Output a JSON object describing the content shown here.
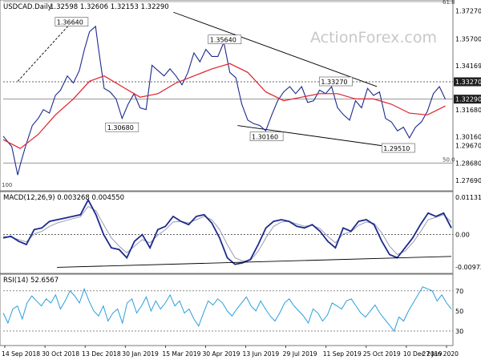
{
  "chart_data": [
    {
      "type": "line",
      "panel": "price",
      "title": "USDCAD.Daily",
      "ohlc_readout": "1.32598 1.32606 1.32153 1.32290",
      "watermark": "ActionForex.com",
      "y_ticks": [
        "1.37270",
        "1.35700",
        "1.34169",
        "1.32290",
        "1.31680",
        "1.30160",
        "1.29670",
        "1.28680",
        "1.27690"
      ],
      "ylim": [
        1.272,
        1.378
      ],
      "current_price_badge": "1.32290",
      "swing_badge": "1.33270",
      "fib_labels": [
        "61.8",
        "50.0",
        "100"
      ],
      "fib_levels": [
        1.378,
        1.2868
      ],
      "horizontal_levels": {
        "resistance": 1.3327,
        "current": 1.3229
      },
      "annotations": [
        {
          "text": "1.36640",
          "x": "2018-12-03",
          "y": 1.3664
        },
        {
          "text": "1.30680",
          "x": "2019-01-31",
          "y": 1.3068
        },
        {
          "text": "1.35640",
          "x": "2019-05-31",
          "y": 1.3564
        },
        {
          "text": "1.30160",
          "x": "2019-07-19",
          "y": 1.3016
        },
        {
          "text": "1.33270",
          "x": "2019-10-08",
          "y": 1.3327
        },
        {
          "text": "1.29510",
          "x": "2019-12-20",
          "y": 1.2951
        }
      ],
      "trendlines": [
        {
          "from": [
            "2018-10-01",
            1.333
          ],
          "to": [
            "2018-12-03",
            1.3664
          ]
        },
        {
          "from": [
            "2019-04-01",
            1.372
          ],
          "to": [
            "2019-11-25",
            1.33
          ]
        },
        {
          "from": [
            "2019-06-15",
            1.308
          ],
          "to": [
            "2020-01-01",
            1.2945
          ]
        }
      ],
      "x_ticks": [
        "14 Sep 2018",
        "30 Oct 2018",
        "13 Dec 2018",
        "30 Jan 2019",
        "15 Mar 2019",
        "30 Apr 2019",
        "13 Jun 2019",
        "29 Jul 2019",
        "11 Sep 2019",
        "25 Oct 2019",
        "10 Dec 2019",
        "27 Jan 2020"
      ],
      "series": [
        {
          "name": "",
          "color": "#1c2a8c",
          "points": [
            [
              "2018-09-14",
              1.302
            ],
            [
              "2018-09-24",
              1.296
            ],
            [
              "2018-10-01",
              1.28
            ],
            [
              "2018-10-04",
              1.286
            ],
            [
              "2018-10-10",
              1.296
            ],
            [
              "2018-10-18",
              1.308
            ],
            [
              "2018-10-25",
              1.312
            ],
            [
              "2018-10-31",
              1.317
            ],
            [
              "2018-11-07",
              1.315
            ],
            [
              "2018-11-14",
              1.325
            ],
            [
              "2018-11-20",
              1.328
            ],
            [
              "2018-11-28",
              1.336
            ],
            [
              "2018-12-05",
              1.332
            ],
            [
              "2018-12-12",
              1.339
            ],
            [
              "2018-12-18",
              1.351
            ],
            [
              "2018-12-24",
              1.361
            ],
            [
              "2018-12-31",
              1.364
            ],
            [
              "2019-01-03",
              1.353
            ],
            [
              "2019-01-10",
              1.329
            ],
            [
              "2019-01-17",
              1.327
            ],
            [
              "2019-01-24",
              1.323
            ],
            [
              "2019-01-31",
              1.312
            ],
            [
              "2019-02-07",
              1.32
            ],
            [
              "2019-02-14",
              1.326
            ],
            [
              "2019-02-21",
              1.318
            ],
            [
              "2019-02-28",
              1.317
            ],
            [
              "2019-03-07",
              1.342
            ],
            [
              "2019-03-14",
              1.339
            ],
            [
              "2019-03-21",
              1.336
            ],
            [
              "2019-03-28",
              1.34
            ],
            [
              "2019-04-04",
              1.336
            ],
            [
              "2019-04-11",
              1.331
            ],
            [
              "2019-04-18",
              1.338
            ],
            [
              "2019-04-25",
              1.349
            ],
            [
              "2019-05-02",
              1.344
            ],
            [
              "2019-05-09",
              1.351
            ],
            [
              "2019-05-16",
              1.347
            ],
            [
              "2019-05-23",
              1.347
            ],
            [
              "2019-05-30",
              1.355
            ],
            [
              "2019-06-06",
              1.338
            ],
            [
              "2019-06-13",
              1.335
            ],
            [
              "2019-06-20",
              1.32
            ],
            [
              "2019-06-27",
              1.311
            ],
            [
              "2019-07-04",
              1.309
            ],
            [
              "2019-07-11",
              1.308
            ],
            [
              "2019-07-18",
              1.305
            ],
            [
              "2019-07-25",
              1.314
            ],
            [
              "2019-08-01",
              1.322
            ],
            [
              "2019-08-08",
              1.327
            ],
            [
              "2019-08-15",
              1.33
            ],
            [
              "2019-08-22",
              1.326
            ],
            [
              "2019-08-29",
              1.33
            ],
            [
              "2019-09-05",
              1.321
            ],
            [
              "2019-09-12",
              1.322
            ],
            [
              "2019-09-19",
              1.328
            ],
            [
              "2019-09-26",
              1.326
            ],
            [
              "2019-10-03",
              1.33
            ],
            [
              "2019-10-10",
              1.318
            ],
            [
              "2019-10-17",
              1.314
            ],
            [
              "2019-10-24",
              1.311
            ],
            [
              "2019-10-31",
              1.322
            ],
            [
              "2019-11-07",
              1.318
            ],
            [
              "2019-11-14",
              1.329
            ],
            [
              "2019-11-21",
              1.325
            ],
            [
              "2019-11-28",
              1.327
            ],
            [
              "2019-12-05",
              1.312
            ],
            [
              "2019-12-12",
              1.31
            ],
            [
              "2019-12-19",
              1.305
            ],
            [
              "2019-12-26",
              1.307
            ],
            [
              "2020-01-02",
              1.301
            ],
            [
              "2020-01-09",
              1.307
            ],
            [
              "2020-01-16",
              1.31
            ],
            [
              "2020-01-23",
              1.316
            ],
            [
              "2020-01-30",
              1.326
            ],
            [
              "2020-02-06",
              1.33
            ],
            [
              "2020-02-13",
              1.3229
            ]
          ]
        },
        {
          "name": "",
          "color": "#e0212a",
          "points": [
            [
              "2018-09-14",
              1.3
            ],
            [
              "2018-10-04",
              1.295
            ],
            [
              "2018-10-25",
              1.303
            ],
            [
              "2018-11-14",
              1.314
            ],
            [
              "2018-12-05",
              1.323
            ],
            [
              "2018-12-24",
              1.333
            ],
            [
              "2019-01-10",
              1.336
            ],
            [
              "2019-01-31",
              1.33
            ],
            [
              "2019-02-21",
              1.324
            ],
            [
              "2019-03-14",
              1.326
            ],
            [
              "2019-04-04",
              1.332
            ],
            [
              "2019-04-25",
              1.336
            ],
            [
              "2019-05-16",
              1.34
            ],
            [
              "2019-06-06",
              1.343
            ],
            [
              "2019-06-27",
              1.338
            ],
            [
              "2019-07-18",
              1.327
            ],
            [
              "2019-08-08",
              1.322
            ],
            [
              "2019-08-29",
              1.324
            ],
            [
              "2019-09-19",
              1.326
            ],
            [
              "2019-10-10",
              1.326
            ],
            [
              "2019-10-31",
              1.323
            ],
            [
              "2019-11-21",
              1.323
            ],
            [
              "2019-12-12",
              1.32
            ],
            [
              "2020-01-02",
              1.315
            ],
            [
              "2020-01-23",
              1.314
            ],
            [
              "2020-02-13",
              1.319
            ]
          ]
        }
      ]
    },
    {
      "type": "line",
      "panel": "macd",
      "title": "MACD(12,26,9) 0.003268 0.004550",
      "y_ticks": [
        "0.011313",
        "0.00",
        "-0.009729"
      ],
      "ylim": [
        -0.011,
        0.0125
      ],
      "series": [
        {
          "name": "",
          "color": "#1c2a8c",
          "values": [
            -0.001,
            -0.0005,
            -0.002,
            -0.003,
            0.0015,
            0.002,
            0.004,
            0.0045,
            0.005,
            0.0055,
            0.006,
            0.0105,
            0.006,
            0.0,
            -0.004,
            -0.0045,
            -0.007,
            -0.002,
            0.0,
            -0.004,
            0.0015,
            0.0025,
            0.0055,
            0.004,
            0.003,
            0.0055,
            0.006,
            0.0035,
            -0.001,
            -0.007,
            -0.009,
            -0.0085,
            -0.0075,
            -0.003,
            0.002,
            0.004,
            0.0045,
            0.004,
            0.0025,
            0.002,
            0.003,
            0.001,
            -0.002,
            -0.004,
            0.002,
            0.001,
            0.004,
            0.0045,
            0.003,
            -0.002,
            -0.006,
            -0.007,
            -0.004,
            -0.001,
            0.003,
            0.0065,
            0.0055,
            0.0065,
            0.002
          ]
        },
        {
          "name": "",
          "color": "#9a9ab4",
          "values": [
            -0.0005,
            -0.0008,
            -0.0015,
            -0.0022,
            0.0002,
            0.001,
            0.0025,
            0.0035,
            0.0042,
            0.0048,
            0.0054,
            0.0085,
            0.0072,
            0.003,
            -0.001,
            -0.0035,
            -0.0055,
            -0.0035,
            -0.0015,
            -0.0025,
            -0.0002,
            0.0015,
            0.0038,
            0.004,
            0.0035,
            0.0045,
            0.0055,
            0.0045,
            0.0015,
            -0.003,
            -0.007,
            -0.008,
            -0.0078,
            -0.005,
            -0.001,
            0.0025,
            0.0038,
            0.004,
            0.0032,
            0.0025,
            0.0028,
            0.0018,
            -0.0005,
            -0.0025,
            0.0002,
            0.0008,
            0.0028,
            0.0038,
            0.0034,
            0.0005,
            -0.0035,
            -0.006,
            -0.005,
            -0.0025,
            0.0008,
            0.0045,
            0.0052,
            0.006,
            0.0038
          ]
        }
      ],
      "trendline": {
        "from": [
          0.12,
          -0.0099
        ],
        "to": [
          1.0,
          -0.0066
        ]
      }
    },
    {
      "type": "line",
      "panel": "rsi",
      "title": "RSI(14) 52.6567",
      "y_ticks": [
        "70",
        "50",
        "30"
      ],
      "ylim": [
        18,
        85
      ],
      "series": [
        {
          "name": "",
          "color": "#2b9fdc",
          "values": [
            48,
            38,
            52,
            55,
            42,
            58,
            65,
            60,
            55,
            62,
            58,
            66,
            52,
            60,
            70,
            65,
            58,
            72,
            60,
            50,
            45,
            55,
            40,
            48,
            52,
            38,
            58,
            62,
            48,
            55,
            64,
            50,
            60,
            52,
            58,
            66,
            55,
            60,
            48,
            52,
            42,
            35,
            48,
            60,
            56,
            62,
            58,
            50,
            45,
            52,
            58,
            64,
            55,
            50,
            60,
            52,
            45,
            40,
            48,
            58,
            62,
            55,
            50,
            45,
            38,
            52,
            48,
            40,
            46,
            58,
            55,
            52,
            60,
            62,
            55,
            48,
            44,
            50,
            56,
            48,
            42,
            36,
            30,
            44,
            40,
            50,
            58,
            66,
            74,
            72,
            70,
            60,
            66,
            58,
            52
          ]
        }
      ]
    }
  ]
}
